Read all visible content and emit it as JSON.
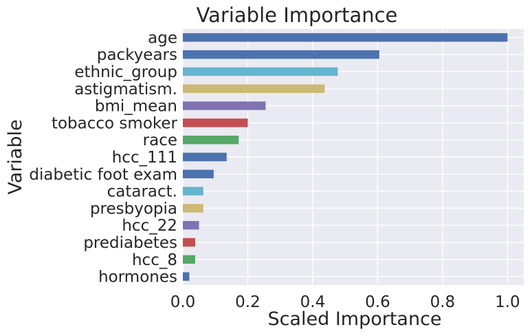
{
  "chart_data": {
    "type": "bar",
    "orientation": "horizontal",
    "title": "Variable Importance",
    "xlabel": "Scaled Importance",
    "ylabel": "Variable",
    "xlim": [
      0,
      1.05
    ],
    "xticks": [
      "0.0",
      "0.2",
      "0.4",
      "0.6",
      "0.8",
      "1.0"
    ],
    "grid": true,
    "legend": "none",
    "categories": [
      "hormones",
      "hcc_8",
      "prediabetes",
      "hcc_22",
      "presbyopia",
      "cataract.",
      "diabetic foot exam",
      "hcc_111",
      "race",
      "tobacco smoker",
      "bmi_mean",
      "astigmatism.",
      "ethnic_group",
      "packyears",
      "age"
    ],
    "values": [
      0.02,
      0.038,
      0.038,
      0.05,
      0.063,
      0.063,
      0.095,
      0.135,
      0.172,
      0.2,
      0.255,
      0.437,
      0.477,
      0.605,
      1.0
    ],
    "colors": [
      "#4C72B0",
      "#55A868",
      "#C44E52",
      "#8172B2",
      "#CCB974",
      "#64B5CD",
      "#4C72B0",
      "#4C72B0",
      "#55A868",
      "#C44E52",
      "#8172B2",
      "#CCB974",
      "#64B5CD",
      "#4C72B0",
      "#4C72B0"
    ],
    "plot_background": "#EAEAF2",
    "grid_color": "#FFFFFF"
  }
}
